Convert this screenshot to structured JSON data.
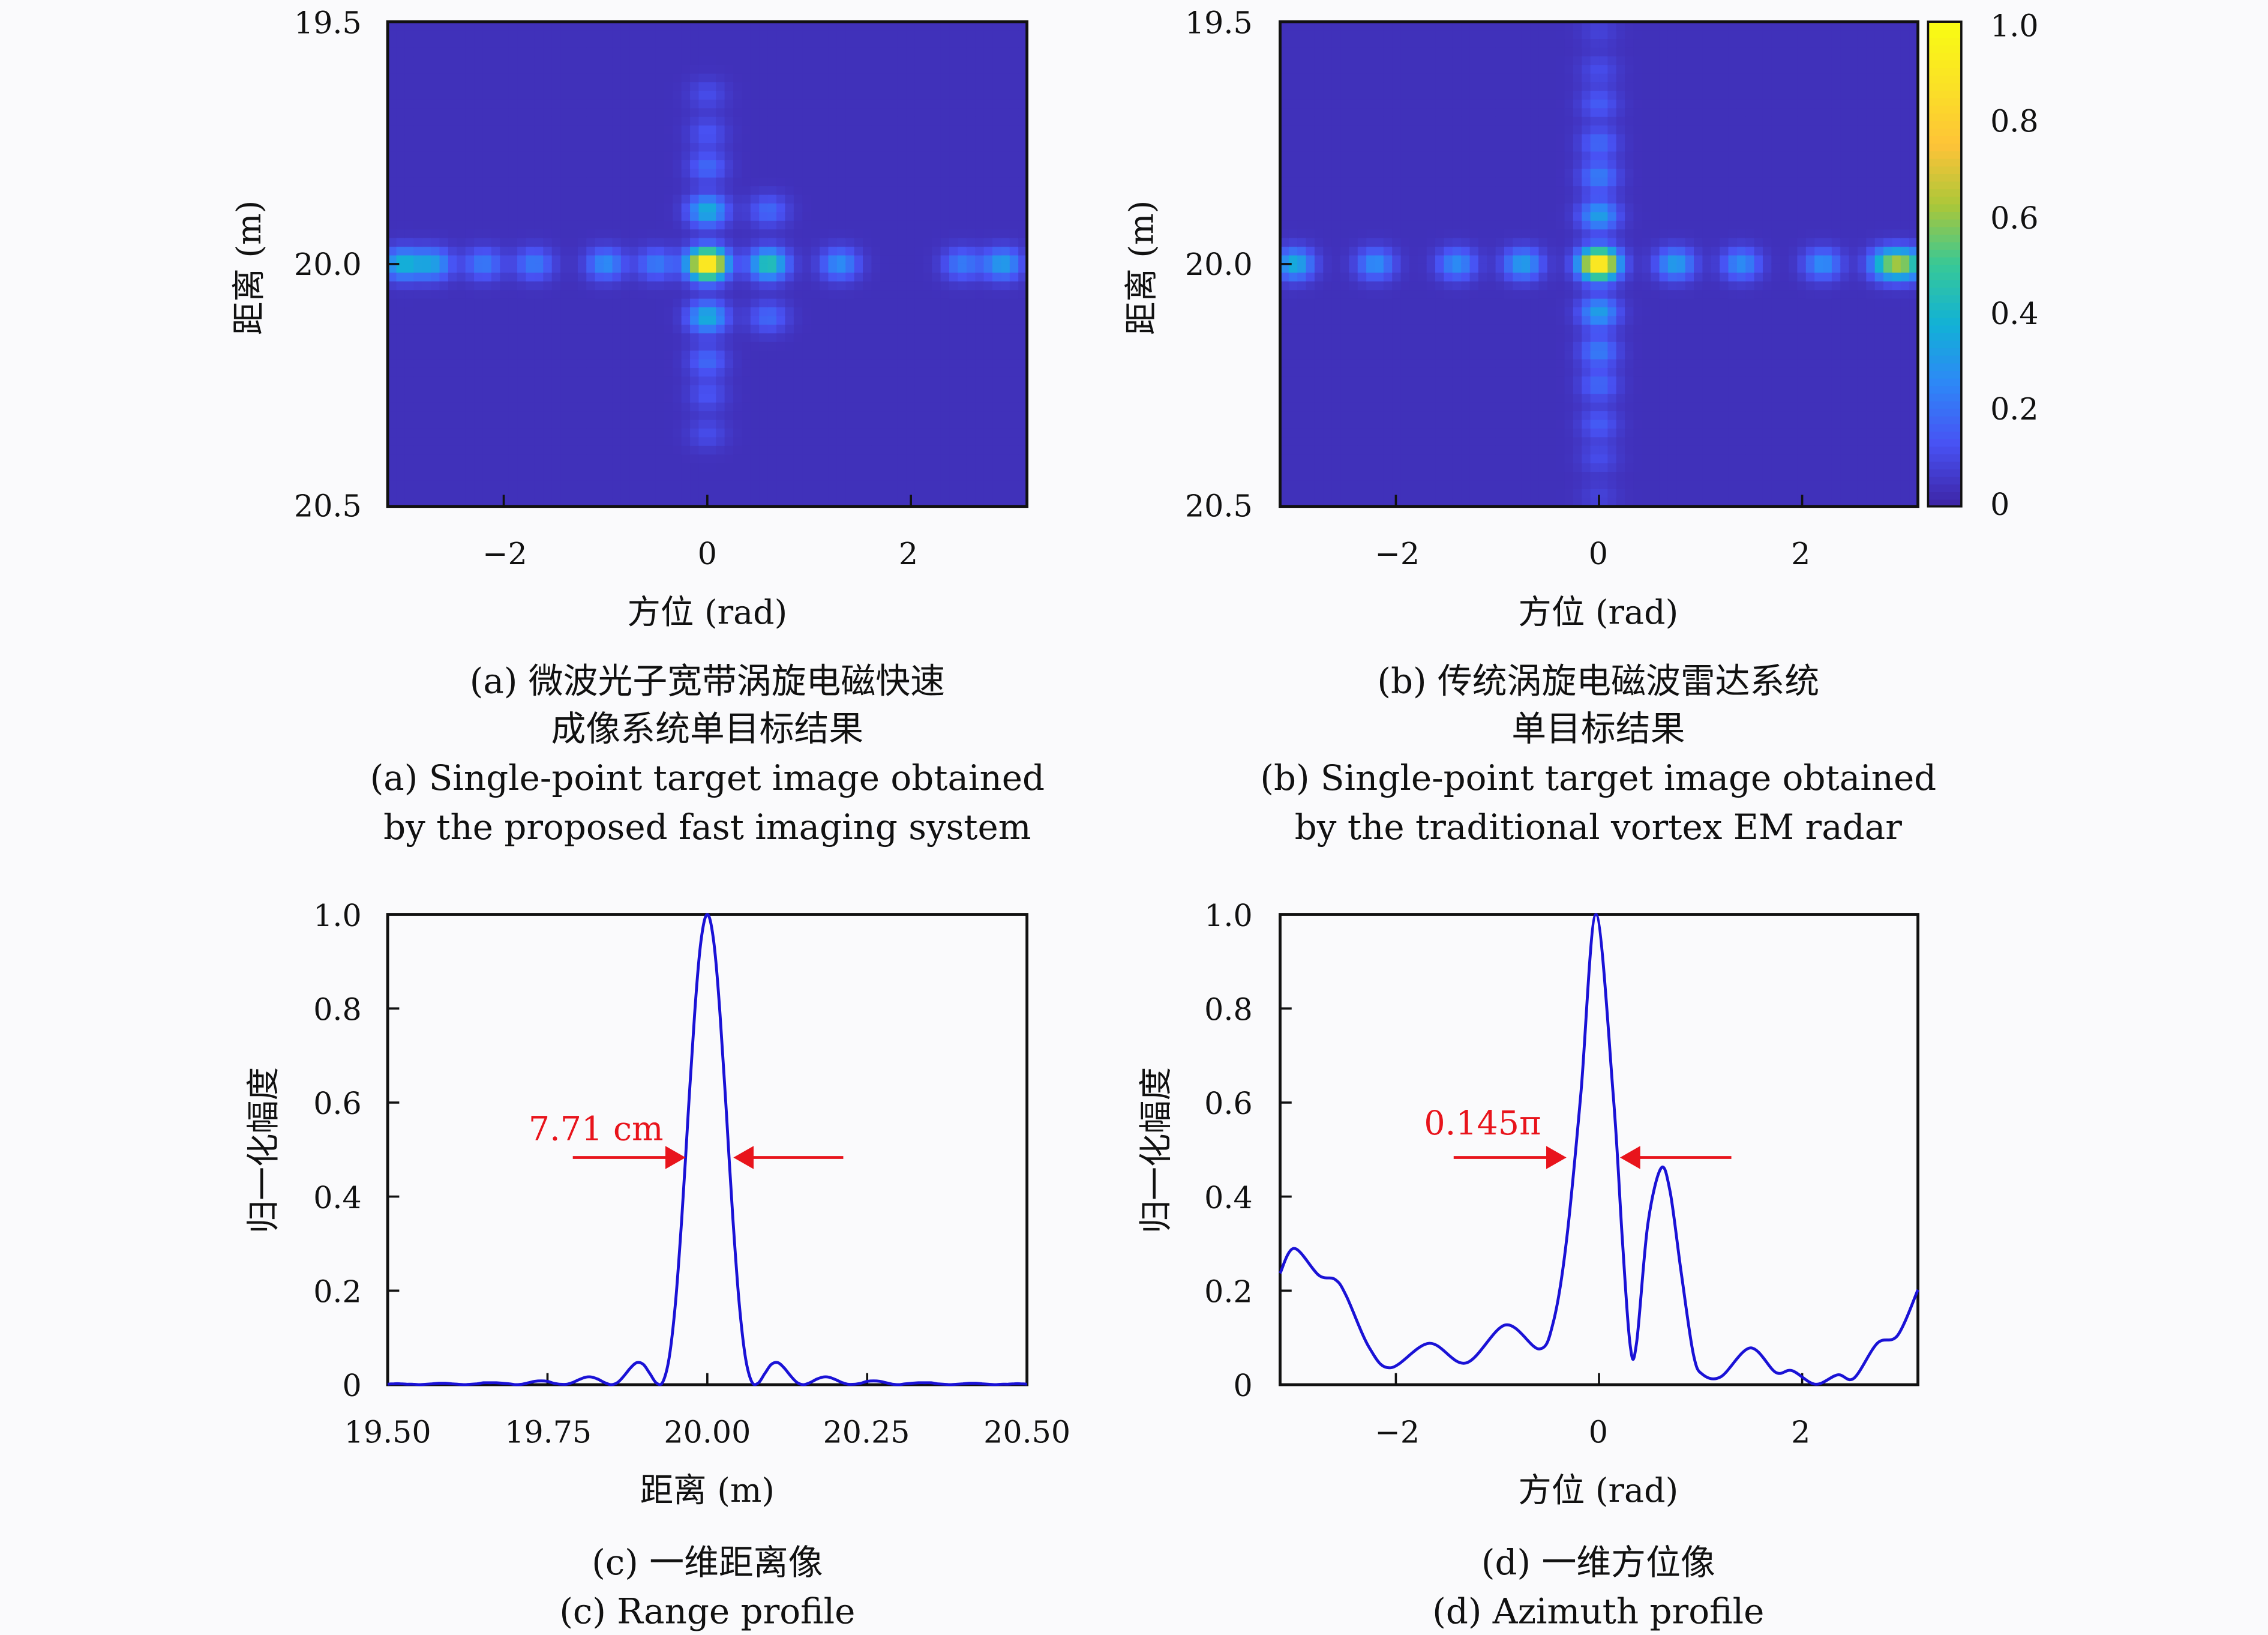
{
  "colorbar": {
    "ticks": [
      "0",
      "0.2",
      "0.4",
      "0.6",
      "0.8",
      "1.0"
    ],
    "range": [
      0,
      1
    ],
    "colormap": "parula"
  },
  "chart_data": [
    {
      "id": "a",
      "type": "heatmap",
      "xlabel": "方位 (rad)",
      "ylabel": "距离 (m)",
      "xlim": [
        -3.14,
        3.14
      ],
      "ylim": [
        19.5,
        20.5
      ],
      "xticks": [
        "−2",
        "0",
        "2"
      ],
      "yticks": [
        "19.5",
        "20.0",
        "20.5"
      ],
      "caption": [
        "(a) 微波光子宽带涡旋电磁快速",
        "成像系统单目标结果",
        "(a) Single-point target image obtained",
        "by the proposed fast imaging system"
      ],
      "peaks": [
        {
          "azimuth": 0,
          "range": 20.0,
          "value": 1.0
        },
        {
          "azimuth": -3.0,
          "range": 20.0,
          "value": 0.35
        },
        {
          "azimuth": -2.7,
          "range": 20.0,
          "value": 0.3
        },
        {
          "azimuth": -2.2,
          "range": 20.0,
          "value": 0.2
        },
        {
          "azimuth": -1.7,
          "range": 20.0,
          "value": 0.2
        },
        {
          "azimuth": -1.0,
          "range": 20.0,
          "value": 0.25
        },
        {
          "azimuth": -0.5,
          "range": 20.0,
          "value": 0.2
        },
        {
          "azimuth": 0.6,
          "range": 20.0,
          "value": 0.45
        },
        {
          "azimuth": 1.3,
          "range": 20.0,
          "value": 0.25
        },
        {
          "azimuth": 2.5,
          "range": 20.0,
          "value": 0.2
        },
        {
          "azimuth": 2.9,
          "range": 20.0,
          "value": 0.3
        },
        {
          "azimuth": 0,
          "range": 19.89,
          "value": 0.35
        },
        {
          "azimuth": 0,
          "range": 20.11,
          "value": 0.35
        },
        {
          "azimuth": 0,
          "range": 19.8,
          "value": 0.15
        },
        {
          "azimuth": 0,
          "range": 20.2,
          "value": 0.15
        },
        {
          "azimuth": 0,
          "range": 19.73,
          "value": 0.1
        },
        {
          "azimuth": 0,
          "range": 20.27,
          "value": 0.1
        },
        {
          "azimuth": 0,
          "range": 19.65,
          "value": 0.08
        },
        {
          "azimuth": 0,
          "range": 20.35,
          "value": 0.08
        },
        {
          "azimuth": 0.6,
          "range": 19.89,
          "value": 0.15
        },
        {
          "azimuth": 0.6,
          "range": 20.11,
          "value": 0.15
        }
      ]
    },
    {
      "id": "b",
      "type": "heatmap",
      "xlabel": "方位 (rad)",
      "ylabel": "距离 (m)",
      "xlim": [
        -3.14,
        3.14
      ],
      "ylim": [
        19.5,
        20.5
      ],
      "xticks": [
        "−2",
        "0",
        "2"
      ],
      "yticks": [
        "19.5",
        "20.0",
        "20.5"
      ],
      "caption": [
        "(b) 传统涡旋电磁波雷达系统",
        "单目标结果",
        "(b) Single-point target image obtained",
        "by the traditional vortex EM radar"
      ],
      "peaks": [
        {
          "azimuth": 0,
          "range": 20.0,
          "value": 1.0
        },
        {
          "azimuth": -3.0,
          "range": 20.0,
          "value": 0.35
        },
        {
          "azimuth": -2.2,
          "range": 20.0,
          "value": 0.25
        },
        {
          "azimuth": -1.4,
          "range": 20.0,
          "value": 0.25
        },
        {
          "azimuth": -0.75,
          "range": 20.0,
          "value": 0.3
        },
        {
          "azimuth": 0.75,
          "range": 20.0,
          "value": 0.3
        },
        {
          "azimuth": 1.4,
          "range": 20.0,
          "value": 0.25
        },
        {
          "azimuth": 2.2,
          "range": 20.0,
          "value": 0.25
        },
        {
          "azimuth": 2.85,
          "range": 20.0,
          "value": 0.45
        },
        {
          "azimuth": 3.05,
          "range": 20.0,
          "value": 0.4
        },
        {
          "azimuth": 0,
          "range": 19.9,
          "value": 0.3
        },
        {
          "azimuth": 0,
          "range": 20.1,
          "value": 0.3
        },
        {
          "azimuth": 0,
          "range": 19.82,
          "value": 0.2
        },
        {
          "azimuth": 0,
          "range": 20.18,
          "value": 0.2
        },
        {
          "azimuth": 0,
          "range": 19.75,
          "value": 0.15
        },
        {
          "azimuth": 0,
          "range": 20.25,
          "value": 0.15
        },
        {
          "azimuth": 0,
          "range": 19.67,
          "value": 0.12
        },
        {
          "azimuth": 0,
          "range": 20.33,
          "value": 0.12
        },
        {
          "azimuth": 0,
          "range": 19.6,
          "value": 0.08
        },
        {
          "azimuth": 0,
          "range": 20.4,
          "value": 0.08
        },
        {
          "azimuth": 0,
          "range": 19.52,
          "value": 0.05
        },
        {
          "azimuth": 0,
          "range": 20.48,
          "value": 0.05
        }
      ]
    },
    {
      "id": "c",
      "type": "line",
      "xlabel": "距离 (m)",
      "ylabel": "归一化幅度",
      "xlim": [
        19.5,
        20.5
      ],
      "ylim": [
        0,
        1
      ],
      "xticks": [
        "19.50",
        "19.75",
        "20.00",
        "20.25",
        "20.50"
      ],
      "yticks": [
        "0",
        "0.2",
        "0.4",
        "0.6",
        "0.8",
        "1.0"
      ],
      "annotation": "7.71 cm",
      "caption": [
        "(c) 一维距离像",
        "(c) Range profile"
      ],
      "color": "#1a12d6",
      "x": [
        19.5,
        19.51,
        19.52,
        19.53,
        19.54,
        19.55,
        19.56,
        19.57,
        19.58,
        19.59,
        19.6,
        19.61,
        19.62,
        19.63,
        19.64,
        19.65,
        19.66,
        19.67,
        19.68,
        19.69,
        19.7,
        19.71,
        19.72,
        19.73,
        19.74,
        19.75,
        19.76,
        19.77,
        19.78,
        19.79,
        19.8,
        19.81,
        19.82,
        19.83,
        19.84,
        19.85,
        19.86,
        19.87,
        19.88,
        19.89,
        19.9,
        19.91,
        19.92,
        19.93,
        19.94,
        19.95,
        19.96,
        19.97,
        19.98,
        19.99,
        20.0,
        20.01,
        20.02,
        20.03,
        20.04,
        20.05,
        20.06,
        20.07,
        20.08,
        20.09,
        20.1,
        20.11,
        20.12,
        20.13,
        20.14,
        20.15,
        20.16,
        20.17,
        20.18,
        20.19,
        20.2,
        20.21,
        20.22,
        20.23,
        20.24,
        20.25,
        20.26,
        20.27,
        20.28,
        20.29,
        20.3,
        20.31,
        20.32,
        20.33,
        20.34,
        20.35,
        20.36,
        20.37,
        20.38,
        20.39,
        20.4,
        20.41,
        20.42,
        20.43,
        20.44,
        20.45,
        20.46,
        20.47,
        20.48,
        20.49,
        20.5
      ],
      "y": [
        0.001,
        0.002,
        0.002,
        0.001,
        0.001,
        0,
        0.001,
        0.002,
        0.003,
        0.003,
        0.002,
        0.001,
        0,
        0.001,
        0.002,
        0.004,
        0.004,
        0.004,
        0.003,
        0.002,
        0,
        0.001,
        0.004,
        0.007,
        0.008,
        0.007,
        0.003,
        0.001,
        0.001,
        0.005,
        0.011,
        0.016,
        0.016,
        0.011,
        0.004,
        0,
        0.005,
        0.019,
        0.036,
        0.047,
        0.043,
        0.024,
        0.004,
        0.005,
        0.055,
        0.171,
        0.352,
        0.573,
        0.787,
        0.943,
        1,
        0.943,
        0.787,
        0.573,
        0.352,
        0.171,
        0.055,
        0.005,
        0.004,
        0.024,
        0.043,
        0.047,
        0.036,
        0.019,
        0.005,
        0,
        0.004,
        0.011,
        0.016,
        0.016,
        0.011,
        0.005,
        0.001,
        0.001,
        0.003,
        0.007,
        0.008,
        0.007,
        0.004,
        0.001,
        0,
        0.002,
        0.003,
        0.004,
        0.004,
        0.004,
        0.002,
        0.001,
        0,
        0.001,
        0.002,
        0.003,
        0.003,
        0.002,
        0.001,
        0,
        0.001,
        0.001,
        0.002,
        0.002,
        0.001
      ]
    },
    {
      "id": "d",
      "type": "line",
      "xlabel": "方位 (rad)",
      "ylabel": "归一化幅度",
      "xlim": [
        -3.14,
        3.14
      ],
      "ylim": [
        0,
        1
      ],
      "xticks": [
        "−2",
        "0",
        "2"
      ],
      "yticks": [
        "0",
        "0.2",
        "0.4",
        "0.6",
        "0.8",
        "1.0"
      ],
      "annotation": "0.145π",
      "caption": [
        "(d) 一维方位像",
        "(d) Azimuth profile"
      ],
      "color": "#1a12d6",
      "x": [
        -3.14,
        -3.0,
        -2.76,
        -2.6,
        -2.49,
        -2.26,
        -2.05,
        -1.67,
        -1.31,
        -0.92,
        -0.59,
        -0.45,
        -0.32,
        -0.18,
        -0.03,
        0.14,
        0.23,
        0.31,
        0.37,
        0.48,
        0.61,
        0.7,
        0.81,
        0.93,
        1.02,
        1.2,
        1.49,
        1.74,
        1.9,
        2.13,
        2.35,
        2.51,
        2.74,
        2.94,
        3.14
      ],
      "y": [
        0.237,
        0.29,
        0.233,
        0.224,
        0.19,
        0.078,
        0.036,
        0.088,
        0.046,
        0.127,
        0.076,
        0.133,
        0.306,
        0.617,
        1.0,
        0.617,
        0.306,
        0.078,
        0.09,
        0.34,
        0.46,
        0.41,
        0.237,
        0.064,
        0.022,
        0.017,
        0.078,
        0.026,
        0.03,
        0.001,
        0.021,
        0.014,
        0.088,
        0.105,
        0.202
      ]
    }
  ]
}
